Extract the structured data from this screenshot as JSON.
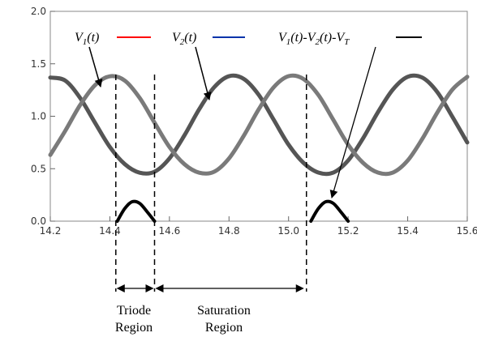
{
  "chart_data": {
    "type": "line",
    "title": "",
    "xlabel": "",
    "ylabel": "",
    "xlim": [
      14.2,
      15.6
    ],
    "ylim": [
      0.0,
      2.0
    ],
    "xticks": [
      "14.2",
      "14.4",
      "14.6",
      "14.8",
      "15.0",
      "15.2",
      "15.4",
      "15.6"
    ],
    "yticks": [
      "0.0",
      "0.5",
      "1.0",
      "1.5",
      "2.0"
    ],
    "grid": false,
    "series": [
      {
        "name": "V1(t)",
        "color": "#555555",
        "x": [
          14.2,
          14.25,
          14.3,
          14.35,
          14.4,
          14.45,
          14.5,
          14.55,
          14.6,
          14.65,
          14.7,
          14.75,
          14.8,
          14.85,
          14.9,
          14.95,
          15.0,
          15.05,
          15.1,
          15.15,
          15.2,
          15.25,
          15.3,
          15.35,
          15.4,
          15.45,
          15.5,
          15.55,
          15.6
        ],
        "values": [
          1.369,
          1.34,
          1.175,
          0.939,
          0.707,
          0.544,
          0.462,
          0.471,
          0.598,
          0.816,
          1.067,
          1.276,
          1.382,
          1.355,
          1.203,
          0.967,
          0.729,
          0.556,
          0.463,
          0.463,
          0.578,
          0.789,
          1.038,
          1.254,
          1.376,
          1.367,
          1.228,
          0.995,
          0.75
        ]
      },
      {
        "name": "V2(t)",
        "color": "#7a7a7a",
        "x": [
          14.2,
          14.25,
          14.3,
          14.35,
          14.4,
          14.45,
          14.5,
          14.55,
          14.6,
          14.65,
          14.7,
          14.75,
          14.8,
          14.85,
          14.9,
          14.95,
          15.0,
          15.05,
          15.1,
          15.15,
          15.2,
          15.25,
          15.3,
          15.35,
          15.4,
          15.45,
          15.5,
          15.55,
          15.6
        ],
        "values": [
          0.631,
          0.86,
          1.106,
          1.296,
          1.381,
          1.34,
          1.175,
          0.939,
          0.707,
          0.544,
          0.462,
          0.471,
          0.598,
          0.816,
          1.067,
          1.276,
          1.382,
          1.355,
          1.203,
          0.967,
          0.729,
          0.556,
          0.463,
          0.463,
          0.578,
          0.789,
          1.038,
          1.254,
          1.376
        ]
      },
      {
        "name": "V1(t)-V2(t)-VT",
        "color": "#000000",
        "x": [
          14.425,
          14.45,
          14.475,
          14.5,
          14.525,
          14.55,
          15.075,
          15.1,
          15.125,
          15.15,
          15.175,
          15.2
        ],
        "values": [
          0.0,
          0.12,
          0.185,
          0.17,
          0.09,
          0.0,
          0.0,
          0.12,
          0.185,
          0.17,
          0.09,
          0.0
        ]
      }
    ],
    "legend": [
      {
        "main": "V",
        "sub": "1",
        "suffix": "(t)",
        "color": "#ff0000"
      },
      {
        "main": "V",
        "sub": "2",
        "suffix": "(t)",
        "color": "#0033aa"
      },
      {
        "main": "V",
        "sub": "1",
        "suffix": "(t)-",
        "main2": "V",
        "sub2": "2",
        "suffix2": "(t)-",
        "main3": "V",
        "sub3": "T",
        "color": "#000000"
      }
    ],
    "region_boundaries_x": [
      14.42,
      14.55,
      15.06
    ],
    "regions": [
      {
        "line1": "Triode",
        "line2": "Region"
      },
      {
        "line1": "Saturation",
        "line2": "Region"
      }
    ]
  }
}
